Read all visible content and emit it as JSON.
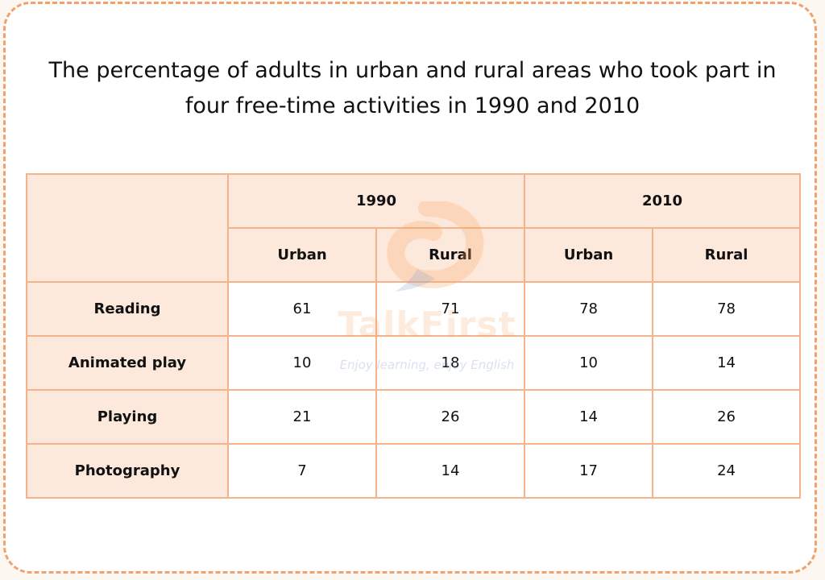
{
  "title": "The percentage of adults in urban and rural areas who took part in four free-time activities in 1990 and 2010",
  "watermark": {
    "brand": "TalkFirst",
    "slogan": "Enjoy learning, enjoy English",
    "icon": "speech-bubble-logo"
  },
  "colors": {
    "border": "#f0a26c",
    "cell_border": "#f4b38b",
    "header_fill": "#fde8dc"
  },
  "chart_data": {
    "type": "table",
    "title": "The percentage of adults in urban and rural areas who took part in four free-time activities in 1990 and 2010",
    "years": [
      "1990",
      "2010"
    ],
    "subheaders": [
      "Urban",
      "Rural",
      "Urban",
      "Rural"
    ],
    "rows": [
      {
        "label": "Reading",
        "values": [
          "61",
          "71",
          "78",
          "78"
        ]
      },
      {
        "label": "Animated play",
        "values": [
          "10",
          "18",
          "10",
          "14"
        ]
      },
      {
        "label": "Playing",
        "values": [
          "21",
          "26",
          "14",
          "26"
        ]
      },
      {
        "label": "Photography",
        "values": [
          "7",
          "14",
          "17",
          "24"
        ]
      }
    ]
  }
}
